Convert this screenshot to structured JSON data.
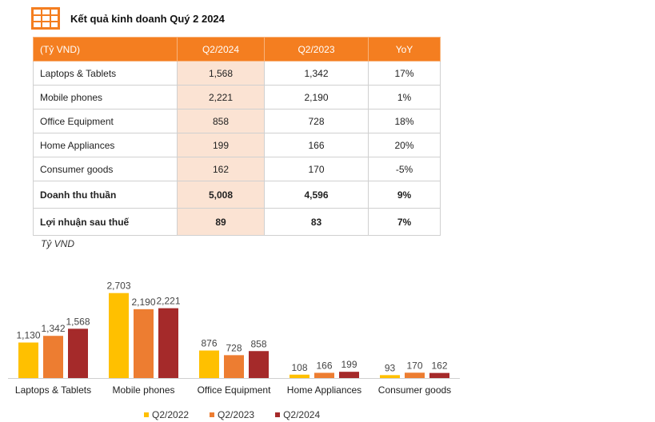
{
  "header": {
    "title": "Kết quả kinh doanh Quý 2 2024",
    "icon": "table-grid-icon"
  },
  "colors": {
    "accent": "#f47e20",
    "highlight_col": "#fbe3d3",
    "q2_2022": "#ffc000",
    "q2_2023": "#ed7d31",
    "q2_2024": "#a52a2a"
  },
  "table": {
    "headers": [
      "(Tỷ VND)",
      "Q2/2024",
      "Q2/2023",
      "YoY"
    ],
    "rows": [
      {
        "label": "Laptops & Tablets",
        "q2_2024": "1,568",
        "q2_2023": "1,342",
        "yoy": "17%"
      },
      {
        "label": "Mobile phones",
        "q2_2024": "2,221",
        "q2_2023": "2,190",
        "yoy": "1%"
      },
      {
        "label": "Office Equipment",
        "q2_2024": "858",
        "q2_2023": "728",
        "yoy": "18%"
      },
      {
        "label": "Home Appliances",
        "q2_2024": "199",
        "q2_2023": "166",
        "yoy": "20%"
      },
      {
        "label": "Consumer goods",
        "q2_2024": "162",
        "q2_2023": "170",
        "yoy": "-5%"
      }
    ],
    "totals": [
      {
        "label": "Doanh thu thuần",
        "q2_2024": "5,008",
        "q2_2023": "4,596",
        "yoy": "9%"
      },
      {
        "label": "Lợi nhuận sau thuế",
        "q2_2024": "89",
        "q2_2023": "83",
        "yoy": "7%"
      }
    ]
  },
  "unit_note": "Tỷ VND",
  "chart_data": {
    "type": "bar",
    "categories": [
      "Laptops & Tablets",
      "Mobile phones",
      "Office Equipment",
      "Home Appliances",
      "Consumer goods"
    ],
    "series": [
      {
        "name": "Q2/2022",
        "values": [
          1130,
          2703,
          876,
          108,
          93
        ]
      },
      {
        "name": "Q2/2023",
        "values": [
          1342,
          2190,
          728,
          166,
          170
        ]
      },
      {
        "name": "Q2/2024",
        "values": [
          1568,
          2221,
          858,
          199,
          162
        ]
      }
    ],
    "ylim": [
      0,
      3000
    ],
    "grid": false,
    "legend_position": "bottom"
  }
}
